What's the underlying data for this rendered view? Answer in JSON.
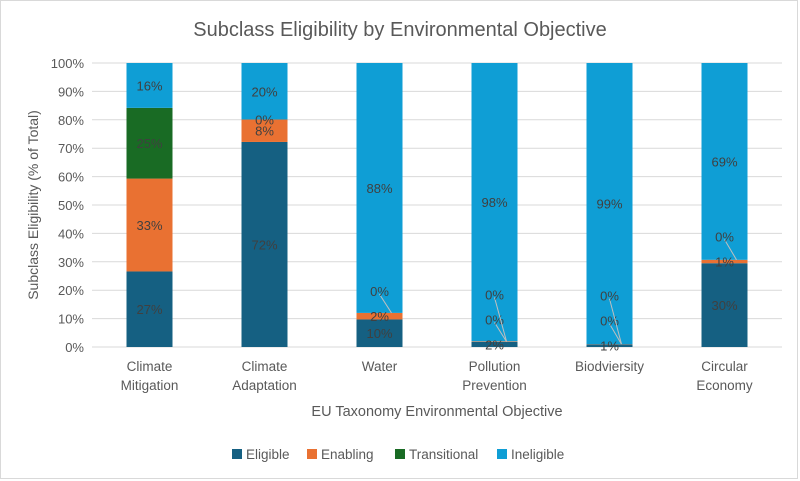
{
  "chart_data": {
    "type": "bar",
    "stacked": true,
    "percent_stacked": true,
    "title": "Subclass Eligibility by Environmental Objective",
    "xlabel": "EU Taxonomy Environmental Objective",
    "ylabel": "Subclass Eligibility (% of Total)",
    "ylim": [
      0,
      100
    ],
    "y_ticks": [
      "0%",
      "10%",
      "20%",
      "30%",
      "40%",
      "50%",
      "60%",
      "70%",
      "80%",
      "90%",
      "100%"
    ],
    "grid": true,
    "legend_position": "bottom",
    "categories": [
      [
        "Climate",
        "Mitigation"
      ],
      [
        "Climate",
        "Adaptation"
      ],
      [
        "Water"
      ],
      [
        "Pollution",
        "Prevention"
      ],
      [
        "Biodviersity"
      ],
      [
        "Circular",
        "Economy"
      ]
    ],
    "series": [
      {
        "name": "Eligible",
        "color": "#156082",
        "values": [
          26.6,
          72.2,
          9.7,
          1.8,
          0.9,
          29.5
        ],
        "labels": [
          "27%",
          "72%",
          "10%",
          "2%",
          "1%",
          "30%"
        ]
      },
      {
        "name": "Enabling",
        "color": "#E97132",
        "values": [
          32.7,
          7.9,
          2.3,
          0.2,
          0.1,
          1.2
        ],
        "labels": [
          "33%",
          "8%",
          "2%",
          "0%",
          "0%",
          "1%"
        ]
      },
      {
        "name": "Transitional",
        "color": "#196B24",
        "values": [
          24.9,
          0,
          0,
          0,
          0,
          0
        ],
        "labels": [
          "25%",
          "0%",
          "0%",
          "0%",
          "0%",
          "0%"
        ]
      },
      {
        "name": "Ineligible",
        "color": "#0F9ED5",
        "values": [
          15.8,
          19.9,
          88.0,
          98.0,
          99.0,
          69.3
        ],
        "labels": [
          "16%",
          "20%",
          "88%",
          "98%",
          "99%",
          "69%"
        ]
      }
    ]
  }
}
